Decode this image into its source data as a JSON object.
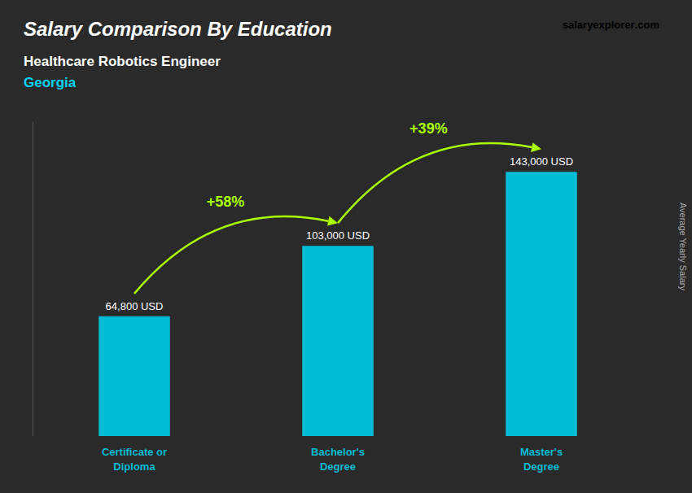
{
  "chart_data": {
    "type": "bar",
    "title": "Salary Comparison By Education",
    "subtitle": "Healthcare Robotics Engineer",
    "categories": [
      "Certificate or\nDiploma",
      "Bachelor's\nDegree",
      "Master's\nDegree"
    ],
    "values": [
      64800,
      103000,
      143000
    ],
    "value_labels": [
      "64,800 USD",
      "103,000 USD",
      "143,000 USD"
    ],
    "color": "#00bcd4",
    "ylim": [
      0,
      170000
    ],
    "tick_labels": "x",
    "annotations": [
      {
        "text": "Georgia",
        "color": "#00d4f5"
      },
      {
        "text": "+58%",
        "color": "#aaff00"
      },
      {
        "text": "+39%",
        "color": "#aaff00"
      },
      {
        "text": "salary",
        "color": "#ffffff"
      },
      {
        "text": "explorer",
        "color": "#00bcd4"
      },
      {
        "text": ".com",
        "color": "#ffffff"
      },
      {
        "text": "Average Yearly Salary",
        "color": "#aaaaaa"
      }
    ]
  }
}
